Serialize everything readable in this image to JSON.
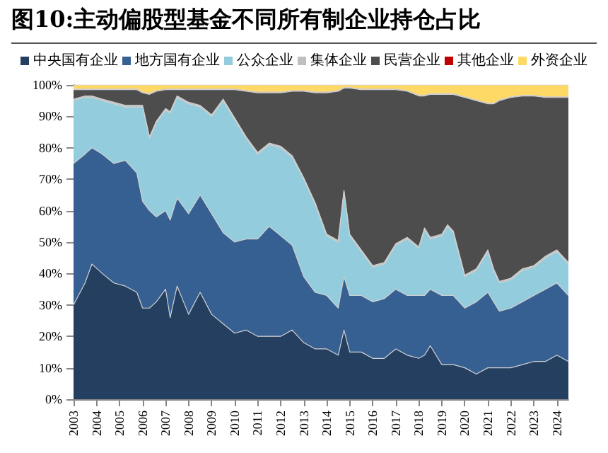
{
  "chart_data": {
    "type": "area",
    "title": "图10:主动偏股型基金不同所有制企业持仓占比",
    "stacked": true,
    "legend": "top",
    "x": [
      2003,
      2003.5,
      2003.8,
      2004.25,
      2004.75,
      2005.25,
      2005.75,
      2006,
      2006.3,
      2006.6,
      2007,
      2007.2,
      2007.5,
      2008,
      2008.5,
      2009,
      2009.5,
      2010,
      2010.5,
      2011,
      2011.5,
      2012,
      2012.5,
      2013,
      2013.5,
      2014,
      2014.5,
      2014.75,
      2015,
      2015.5,
      2016,
      2016.5,
      2017,
      2017.5,
      2018,
      2018.25,
      2018.5,
      2019,
      2019.25,
      2019.5,
      2020,
      2020.5,
      2021,
      2021.25,
      2021.5,
      2022,
      2022.5,
      2023,
      2023.5,
      2024,
      2024.5
    ],
    "xlim": [
      2003,
      2024.5
    ],
    "xticks": [
      2003,
      2004,
      2005,
      2006,
      2007,
      2008,
      2009,
      2010,
      2011,
      2012,
      2013,
      2014,
      2015,
      2016,
      2017,
      2018,
      2019,
      2020,
      2021,
      2022,
      2023,
      2024
    ],
    "ylim": [
      0,
      100
    ],
    "yticks": [
      {
        "value": 0,
        "label": "0%"
      },
      {
        "value": 10,
        "label": "10%"
      },
      {
        "value": 20,
        "label": "20%"
      },
      {
        "value": 30,
        "label": "30%"
      },
      {
        "value": 40,
        "label": "40%"
      },
      {
        "value": 50,
        "label": "50%"
      },
      {
        "value": 60,
        "label": "60%"
      },
      {
        "value": 70,
        "label": "70%"
      },
      {
        "value": 80,
        "label": "80%"
      },
      {
        "value": 90,
        "label": "90%"
      },
      {
        "value": 100,
        "label": "100%"
      }
    ],
    "series": [
      {
        "name": "中央国有企业",
        "color": "#243f60",
        "values": [
          30,
          37,
          43,
          40,
          37,
          36,
          34,
          29,
          29,
          31,
          35,
          26,
          36,
          27,
          34,
          27,
          24,
          21,
          22,
          20,
          20,
          20,
          22,
          18,
          16,
          16,
          14,
          22,
          15,
          15,
          13,
          13,
          16,
          14,
          13,
          14,
          17,
          11,
          11,
          11,
          10,
          8,
          10,
          10,
          10,
          10,
          11,
          12,
          12,
          14,
          12
        ]
      },
      {
        "name": "地方国有企业",
        "color": "#376092",
        "values": [
          45,
          41,
          37,
          38,
          38,
          40,
          38,
          34,
          31,
          27,
          25,
          31,
          28,
          32,
          31,
          32,
          29,
          29,
          29,
          31,
          35,
          32,
          27,
          21,
          18,
          17,
          15,
          17,
          18,
          18,
          18,
          19,
          19,
          19,
          20,
          19,
          18,
          22,
          22,
          22,
          19,
          23,
          24,
          21,
          18,
          19,
          20,
          21,
          23,
          23,
          21
        ]
      },
      {
        "name": "公众企业",
        "color": "#93cddd",
        "values": [
          20,
          18,
          16,
          17,
          19,
          17,
          21,
          30,
          23,
          30,
          32,
          34,
          32,
          35,
          28,
          31,
          42,
          39,
          32,
          27,
          26,
          28,
          28,
          31,
          28,
          19,
          21,
          27,
          19,
          14,
          11,
          11,
          14,
          18,
          15,
          21,
          16,
          19,
          22,
          20,
          10,
          10,
          13,
          10,
          9,
          9,
          10,
          9,
          10,
          10,
          10
        ]
      },
      {
        "name": "集体企业",
        "color": "#bfbfbf",
        "values": [
          0.5,
          0.5,
          0.5,
          0.5,
          0.5,
          0.5,
          0.5,
          0.5,
          0.5,
          0.5,
          0.5,
          0.5,
          0.5,
          0.5,
          0.5,
          0.5,
          0.5,
          0.5,
          0.5,
          0.5,
          0.5,
          0.5,
          0.5,
          0.5,
          0.5,
          0.5,
          0.5,
          0.5,
          0.5,
          0.5,
          0.5,
          0.5,
          0.5,
          0.5,
          0.5,
          0.5,
          0.5,
          0.5,
          0.5,
          0.5,
          0.5,
          0.5,
          0.5,
          0.5,
          0.5,
          0.5,
          0.5,
          0.5,
          0.5,
          0.5,
          0.5
        ]
      },
      {
        "name": "民营企业",
        "color": "#4d4d4d",
        "values": [
          3,
          2,
          2,
          3,
          4,
          5,
          5,
          4,
          13.5,
          9.5,
          6,
          7,
          2,
          4,
          5,
          8,
          3,
          9,
          14.5,
          19,
          16,
          17,
          20.5,
          27.5,
          35,
          45,
          47.5,
          32.5,
          46.5,
          51,
          56,
          55,
          49,
          46.5,
          48,
          42,
          45.5,
          44.5,
          41.5,
          43.5,
          56.5,
          53.5,
          46.5,
          52.5,
          57.5,
          57.5,
          55,
          54,
          50.5,
          48.5,
          52.5
        ]
      },
      {
        "name": "其他企业",
        "color": "#c00000",
        "values": [
          0.2,
          0.2,
          0.2,
          0.2,
          0.2,
          0.2,
          0.2,
          0.2,
          0.2,
          0.2,
          0.2,
          0.2,
          0.2,
          0.2,
          0.2,
          0.2,
          0.2,
          0.2,
          0.2,
          0.2,
          0.2,
          0.2,
          0.2,
          0.2,
          0.2,
          0.2,
          0.2,
          0.2,
          0.2,
          0.2,
          0.2,
          0.2,
          0.2,
          0.2,
          0.2,
          0.2,
          0.2,
          0.2,
          0.2,
          0.2,
          0.2,
          0.2,
          0.2,
          0.2,
          0.2,
          0.2,
          0.2,
          0.2,
          0.2,
          0.2,
          0.2
        ]
      },
      {
        "name": "外资企业",
        "color": "#ffd966",
        "values": [
          1.3,
          1.3,
          1.3,
          1.3,
          1.3,
          1.3,
          1.3,
          2.3,
          2.8,
          1.8,
          1.3,
          1.3,
          1.3,
          1.3,
          1.3,
          1.3,
          1.3,
          1.3,
          1.8,
          2.3,
          2.3,
          2.3,
          1.8,
          1.8,
          2.3,
          2.3,
          1.8,
          0.8,
          0.8,
          1.3,
          1.3,
          1.3,
          1.3,
          1.8,
          3.3,
          3.3,
          2.8,
          2.8,
          2.8,
          2.8,
          3.8,
          4.8,
          5.8,
          5.8,
          4.8,
          3.8,
          3.3,
          3.3,
          3.8,
          3.8,
          3.8
        ]
      }
    ]
  }
}
